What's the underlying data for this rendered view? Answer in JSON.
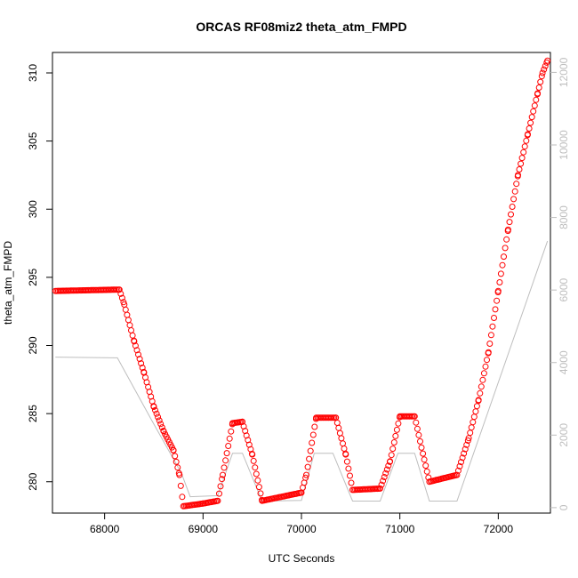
{
  "chart_data": {
    "type": "scatter",
    "title": "ORCAS RF08miz2 theta_atm_FMPD",
    "xlabel": "UTC Seconds",
    "ylabel": "theta_atm_FMPD",
    "xlim": [
      67470,
      72530
    ],
    "ylim": [
      277.7,
      311.5
    ],
    "y2lim": [
      -150,
      12550
    ],
    "x_ticks": [
      68000,
      69000,
      70000,
      71000,
      72000
    ],
    "y_ticks": [
      280,
      285,
      290,
      295,
      300,
      305,
      310
    ],
    "y2_ticks": [
      0,
      2000,
      4000,
      6000,
      8000,
      10000,
      12000
    ],
    "colors": {
      "points": "#ff0000",
      "secondary_line": "#bebebe",
      "secondary_axis": "#bebebe"
    },
    "series": [
      {
        "values_xy": [
          [
            67500,
            294.0
          ],
          [
            68150,
            294.1
          ],
          [
            68200,
            293.0
          ],
          [
            68300,
            290.3
          ],
          [
            68400,
            288.0
          ],
          [
            68500,
            285.5
          ],
          [
            68600,
            283.7
          ],
          [
            68700,
            282.3
          ],
          [
            68760,
            280.5
          ],
          [
            68800,
            278.2
          ],
          [
            69000,
            278.4
          ],
          [
            69150,
            278.6
          ],
          [
            69200,
            280.5
          ],
          [
            69300,
            284.3
          ],
          [
            69400,
            284.4
          ],
          [
            69500,
            282.0
          ],
          [
            69600,
            278.6
          ],
          [
            70000,
            279.2
          ],
          [
            70050,
            280.5
          ],
          [
            70150,
            284.7
          ],
          [
            70350,
            284.7
          ],
          [
            70450,
            282.0
          ],
          [
            70520,
            279.4
          ],
          [
            70800,
            279.5
          ],
          [
            70900,
            281.5
          ],
          [
            71000,
            284.8
          ],
          [
            71150,
            284.8
          ],
          [
            71220,
            282.5
          ],
          [
            71300,
            280.0
          ],
          [
            71580,
            280.5
          ],
          [
            71700,
            283.2
          ],
          [
            71800,
            286.0
          ],
          [
            71900,
            289.5
          ],
          [
            72000,
            294.0
          ],
          [
            72100,
            298.5
          ],
          [
            72200,
            302.5
          ],
          [
            72300,
            305.5
          ],
          [
            72400,
            308.5
          ],
          [
            72450,
            310.0
          ],
          [
            72500,
            310.9
          ]
        ]
      },
      {
        "values_xy": [
          [
            67500,
            4150
          ],
          [
            68130,
            4130
          ],
          [
            68480,
            2400
          ],
          [
            68780,
            950
          ],
          [
            68870,
            300
          ],
          [
            69150,
            330
          ],
          [
            69300,
            1500
          ],
          [
            69400,
            1500
          ],
          [
            69600,
            180
          ],
          [
            70000,
            200
          ],
          [
            70130,
            1500
          ],
          [
            70320,
            1500
          ],
          [
            70520,
            180
          ],
          [
            70800,
            180
          ],
          [
            70980,
            1500
          ],
          [
            71150,
            1500
          ],
          [
            71300,
            180
          ],
          [
            71580,
            180
          ],
          [
            72500,
            7350
          ]
        ]
      }
    ]
  }
}
